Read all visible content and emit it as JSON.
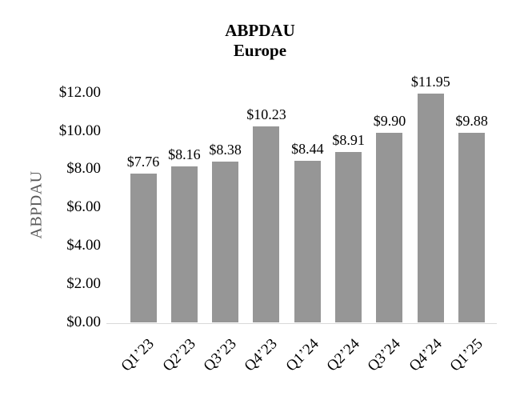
{
  "chart_data": {
    "type": "bar",
    "title": "ABPDAU",
    "subtitle": "Europe",
    "ylabel": "ABPDAU",
    "categories": [
      "Q1’23",
      "Q2’23",
      "Q3’23",
      "Q4’23",
      "Q1’24",
      "Q2’24",
      "Q3’24",
      "Q4’24",
      "Q1’25"
    ],
    "values": [
      7.76,
      8.16,
      8.38,
      10.23,
      8.44,
      8.91,
      9.9,
      11.95,
      9.88
    ],
    "data_labels": [
      "$7.76",
      "$8.16",
      "$8.38",
      "$10.23",
      "$8.44",
      "$8.91",
      "$9.90",
      "$11.95",
      "$9.88"
    ],
    "y_ticks": [
      "$0.00",
      "$2.00",
      "$4.00",
      "$6.00",
      "$8.00",
      "$10.00",
      "$12.00"
    ],
    "y_tick_values": [
      0,
      2,
      4,
      6,
      8,
      10,
      12
    ],
    "ylim": [
      0,
      12
    ],
    "grid": false,
    "legend": false,
    "bar_color": "#969696",
    "axis_line_color": "#d9d9d9",
    "text_color": "#000000",
    "axis_title_color": "#595959"
  }
}
